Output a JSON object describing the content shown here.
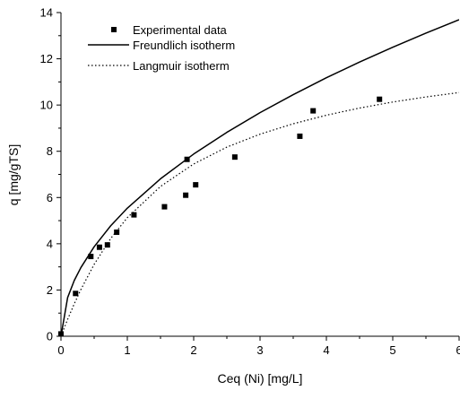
{
  "chart_data": {
    "type": "scatter",
    "xlabel": "Ceq (Ni) [mg/L]",
    "ylabel": "q [mg/gTS]",
    "xlim": [
      0,
      6
    ],
    "ylim": [
      0,
      14
    ],
    "xticks": [
      0,
      1,
      2,
      3,
      4,
      5,
      6
    ],
    "yticks": [
      0,
      2,
      4,
      6,
      8,
      10,
      12,
      14
    ],
    "x_tick_labels": [
      "0",
      "1",
      "2",
      "3",
      "4",
      "5",
      "6"
    ],
    "y_tick_labels": [
      "0",
      "2",
      "4",
      "6",
      "8",
      "10",
      "12",
      "14"
    ],
    "grid": false,
    "legend_position": "top-left",
    "series": [
      {
        "name": "Experimental data",
        "kind": "points",
        "marker": "square",
        "color": "#000000",
        "x": [
          0.0,
          0.22,
          0.45,
          0.58,
          0.7,
          0.84,
          1.1,
          1.56,
          1.88,
          1.9,
          2.03,
          2.62,
          3.6,
          3.8,
          4.8
        ],
        "y": [
          0.1,
          1.85,
          3.45,
          3.85,
          3.95,
          4.5,
          5.25,
          5.6,
          6.1,
          7.65,
          6.55,
          7.75,
          8.65,
          9.75,
          10.25
        ]
      },
      {
        "name": "Freundlich isotherm",
        "kind": "line",
        "dash": "solid",
        "color": "#000000",
        "x": [
          0.0,
          0.1,
          0.2,
          0.3,
          0.5,
          0.75,
          1.0,
          1.5,
          2.0,
          2.5,
          3.0,
          3.5,
          4.0,
          4.5,
          5.0,
          5.5,
          6.0
        ],
        "y": [
          0.0,
          1.67,
          2.41,
          2.97,
          3.87,
          4.78,
          5.54,
          6.81,
          7.88,
          8.82,
          9.67,
          10.45,
          11.18,
          11.86,
          12.5,
          13.11,
          13.69
        ]
      },
      {
        "name": "Langmuir isotherm",
        "kind": "line",
        "dash": "dotted",
        "color": "#000000",
        "x": [
          0.0,
          0.1,
          0.2,
          0.3,
          0.5,
          0.75,
          1.0,
          1.5,
          2.0,
          2.5,
          3.0,
          3.5,
          4.0,
          4.5,
          5.0,
          5.5,
          6.0
        ],
        "y": [
          0.0,
          0.73,
          1.4,
          2.02,
          3.11,
          4.23,
          5.13,
          6.48,
          7.45,
          8.18,
          8.74,
          9.19,
          9.56,
          9.87,
          10.13,
          10.35,
          10.54
        ]
      }
    ]
  }
}
